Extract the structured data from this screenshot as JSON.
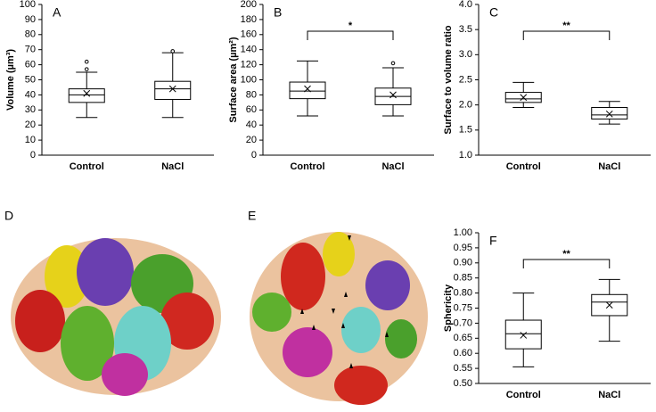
{
  "chart_data": [
    {
      "type": "box",
      "label": "A",
      "ylabel": "Volume (µm³)",
      "categories": [
        "Control",
        "NaCl"
      ],
      "boxes": [
        {
          "min": 25,
          "q1": 35,
          "median": 40,
          "q3": 44,
          "max": 55,
          "mean": 41,
          "outliers": [
            57,
            62
          ]
        },
        {
          "min": 25,
          "q1": 37,
          "median": 44,
          "q3": 49,
          "max": 68,
          "mean": 44,
          "outliers": [
            69
          ]
        }
      ],
      "ylim": [
        0,
        100
      ],
      "yticks": [
        0,
        10,
        20,
        30,
        40,
        50,
        60,
        70,
        80,
        90,
        100
      ]
    },
    {
      "type": "box",
      "label": "B",
      "ylabel": "Surface area (µm²)",
      "categories": [
        "Control",
        "NaCl"
      ],
      "boxes": [
        {
          "min": 52,
          "q1": 75,
          "median": 85,
          "q3": 97,
          "max": 125,
          "mean": 88,
          "outliers": []
        },
        {
          "min": 52,
          "q1": 67,
          "median": 78,
          "q3": 89,
          "max": 116,
          "mean": 80,
          "outliers": [
            122
          ]
        }
      ],
      "annotation": "*",
      "ylim": [
        0,
        200
      ],
      "yticks": [
        0,
        20,
        40,
        60,
        80,
        100,
        120,
        140,
        160,
        180,
        200
      ]
    },
    {
      "type": "box",
      "label": "C",
      "ylabel": "Surface to volume ratio",
      "categories": [
        "Control",
        "NaCl"
      ],
      "boxes": [
        {
          "min": 1.95,
          "q1": 2.05,
          "median": 2.12,
          "q3": 2.25,
          "max": 2.45,
          "mean": 2.15,
          "outliers": []
        },
        {
          "min": 1.62,
          "q1": 1.72,
          "median": 1.8,
          "q3": 1.95,
          "max": 2.07,
          "mean": 1.82,
          "outliers": []
        }
      ],
      "annotation": "**",
      "ylim": [
        1.0,
        4.0
      ],
      "yticks": [
        {
          "value": 1,
          "label": "1.0"
        },
        1.5,
        {
          "value": 2,
          "label": "2.0"
        },
        2.5,
        {
          "value": 3,
          "label": "3.0"
        },
        3.5,
        {
          "value": 4,
          "label": "4.0"
        }
      ]
    },
    {
      "type": "box",
      "label": "F",
      "ylabel": "Sphericity",
      "categories": [
        "Control",
        "NaCl"
      ],
      "boxes": [
        {
          "min": 0.555,
          "q1": 0.615,
          "median": 0.665,
          "q3": 0.71,
          "max": 0.8,
          "mean": 0.66,
          "outliers": []
        },
        {
          "min": 0.64,
          "q1": 0.725,
          "median": 0.77,
          "q3": 0.795,
          "max": 0.845,
          "mean": 0.76,
          "outliers": []
        }
      ],
      "annotation": "**",
      "ylim": [
        0.5,
        1.0
      ],
      "yticks": [
        {
          "value": 0.5,
          "label": "0.50"
        },
        0.55,
        {
          "value": 0.6,
          "label": "0.60"
        },
        0.65,
        {
          "value": 0.7,
          "label": "0.70"
        },
        0.75,
        {
          "value": 0.8,
          "label": "0.80"
        },
        0.85,
        {
          "value": 0.9,
          "label": "0.90"
        },
        0.95,
        {
          "value": 1,
          "label": "1.00"
        }
      ]
    }
  ],
  "images": [
    {
      "label": "D"
    },
    {
      "label": "E"
    }
  ]
}
